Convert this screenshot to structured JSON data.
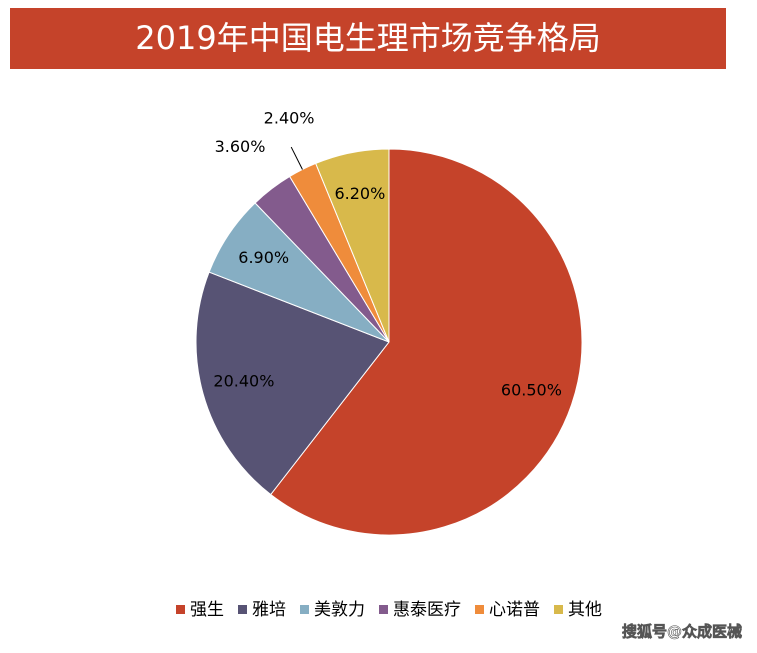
{
  "chart_data": {
    "type": "pie",
    "title": "2019年中国电生理市场竞争格局",
    "categories": [
      "强生",
      "雅培",
      "美敦力",
      "惠泰医疗",
      "心诺普",
      "其他"
    ],
    "values": [
      60.5,
      20.4,
      6.9,
      3.6,
      2.4,
      6.2
    ],
    "value_labels": [
      "60.50%",
      "20.40%",
      "6.90%",
      "3.60%",
      "2.40%",
      "6.20%"
    ],
    "colors": [
      "#c5432a",
      "#575374",
      "#86aec3",
      "#835b8d",
      "#ef8c3b",
      "#d8b94b"
    ],
    "legend": "bottom"
  },
  "watermark": "搜狐号@众成医械"
}
